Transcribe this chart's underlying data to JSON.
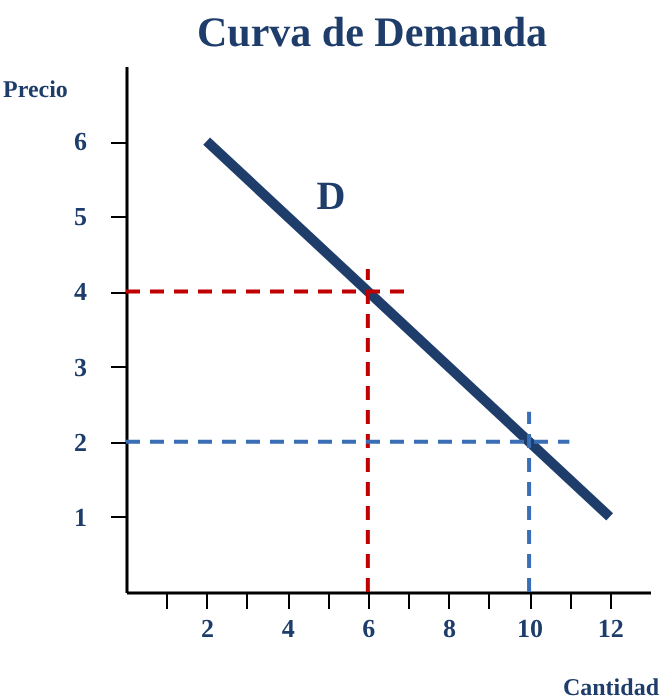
{
  "chart_data": {
    "type": "line",
    "title": "Curva de Demanda",
    "xlabel": "Cantidad",
    "ylabel": "Precio",
    "xlim": [
      0,
      13
    ],
    "ylim": [
      0,
      7
    ],
    "xticks": [
      {
        "value": 1,
        "label": null
      },
      2,
      {
        "value": 3,
        "label": null
      },
      4,
      {
        "value": 5,
        "label": null
      },
      6,
      {
        "value": 7,
        "label": null
      },
      8,
      {
        "value": 9,
        "label": null
      },
      10,
      {
        "value": 11,
        "label": null
      },
      12
    ],
    "yticks": [
      1,
      2,
      3,
      4,
      5,
      6
    ],
    "grid": false,
    "marker": "none",
    "series": [
      {
        "name": "D",
        "color": "#1f3d6b",
        "line_style": "solid",
        "x": [
          2,
          12
        ],
        "values": [
          6,
          1
        ]
      },
      {
        "color": "#c00000",
        "line_style": "dashed",
        "x": [
          0,
          7
        ],
        "values": [
          4,
          4
        ]
      },
      {
        "color": "#c00000",
        "line_style": "dashed",
        "x": [
          6,
          6
        ],
        "values": [
          0,
          4.3
        ]
      },
      {
        "color": "#3a6fb5",
        "line_style": "dashed",
        "x": [
          0,
          11
        ],
        "values": [
          2,
          2
        ]
      },
      {
        "color": "#3a6fb5",
        "line_style": "dashed",
        "x": [
          10,
          10
        ],
        "values": [
          0,
          2.4
        ]
      }
    ]
  }
}
